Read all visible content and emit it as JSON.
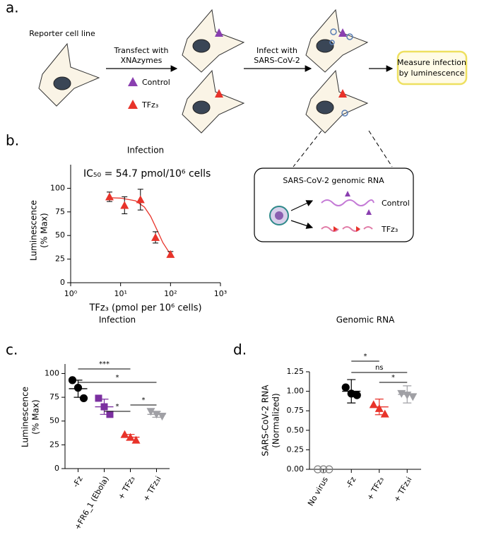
{
  "panel_labels": [
    "a.",
    "b.",
    "c.",
    "d."
  ],
  "diagram": {
    "reporter": "Reporter cell line",
    "transfect": [
      "Transfect with",
      "XNAzymes"
    ],
    "legend_control": "Control",
    "legend_tfz": "TFz₃",
    "infect": [
      "Infect with",
      "SARS-CoV-2"
    ],
    "measure": [
      "Measure infection",
      "by luminescence"
    ],
    "rna_box": {
      "title": "SARS-CoV-2 genomic RNA",
      "control": "Control",
      "tfz": "TFz₃"
    }
  },
  "chart_data": [
    {
      "type": "scatter",
      "title": "Infection",
      "annotation": "IC₅₀ = 54.7 pmol/10⁶ cells",
      "x_label": "TFz₃ (pmol per 10⁶ cells)",
      "y_label": [
        "Luminescence",
        "(% Max)"
      ],
      "xscale": "log",
      "xlim": [
        1,
        1000
      ],
      "xticks": [
        {
          "value": 1,
          "label": "10⁰"
        },
        {
          "value": 10,
          "label": "10¹"
        },
        {
          "value": 100,
          "label": "10²"
        },
        {
          "value": 1000,
          "label": "10³"
        }
      ],
      "ylim": [
        0,
        125
      ],
      "yticks": [
        0,
        25,
        50,
        75,
        100
      ],
      "series": [
        {
          "color": "#e8332a",
          "x": [
            6,
            12,
            25,
            50,
            100
          ],
          "values": [
            91,
            82,
            88,
            48,
            30
          ],
          "errors": [
            5,
            9,
            11,
            6,
            3
          ]
        }
      ],
      "fit": {
        "color": "#e8332a",
        "x": [
          6,
          10,
          20,
          30,
          40,
          54.7,
          70,
          100
        ],
        "values": [
          90,
          89.6,
          86.7,
          80.1,
          70.3,
          55,
          42.6,
          29.9
        ]
      }
    },
    {
      "type": "strip",
      "title": "Infection",
      "y_label": [
        "Luminescence",
        "(% Max)"
      ],
      "categories": [
        "-Fz",
        "+FR6_1 (Ebola)",
        "+ TFz₃",
        "+ TFz₃i"
      ],
      "ylim": [
        0,
        110
      ],
      "yticks": [
        0,
        25,
        50,
        75,
        100
      ],
      "groups": [
        {
          "color": "#000000",
          "marker": "circle",
          "values": [
            93,
            85,
            74
          ],
          "mean": 84,
          "sd": 9
        },
        {
          "color": "#7b2fa0",
          "marker": "square",
          "values": [
            74,
            65,
            57
          ],
          "mean": 65,
          "sd": 8
        },
        {
          "color": "#e8332a",
          "marker": "triangle",
          "values": [
            36,
            33,
            30
          ],
          "mean": 33,
          "sd": 3
        },
        {
          "color": "#a0a0a5",
          "marker": "triangle-down",
          "values": [
            60,
            57,
            55
          ],
          "mean": 57,
          "sd": 3
        }
      ],
      "annotations": [
        "***",
        "*",
        "*",
        "*"
      ]
    },
    {
      "type": "strip",
      "title": "Genomic RNA",
      "y_label": [
        "SARS-CoV-2 RNA",
        "(Normalized)"
      ],
      "categories": [
        "No virus",
        "-Fz",
        "+ TFz₃",
        "+ TFz₃i"
      ],
      "ylim": [
        0,
        1.25
      ],
      "yticks": [
        {
          "value": 0,
          "label": "0.00"
        },
        {
          "value": 0.25,
          "label": "0.25"
        },
        {
          "value": 0.5,
          "label": "0.50"
        },
        {
          "value": 0.75,
          "label": "0.75"
        },
        {
          "value": 1,
          "label": "1.00"
        },
        {
          "value": 1.25,
          "label": "1.25"
        }
      ],
      "groups": [
        {
          "color": "#808080",
          "marker": "circle-open",
          "values": [
            0,
            0,
            0
          ]
        },
        {
          "color": "#000000",
          "marker": "circle",
          "values": [
            1.05,
            0.97,
            0.95
          ],
          "mean": 1.0,
          "sd": 0.15
        },
        {
          "color": "#e8332a",
          "marker": "triangle",
          "values": [
            0.83,
            0.78,
            0.71
          ],
          "mean": 0.8,
          "sd": 0.1
        },
        {
          "color": "#a0a0a5",
          "marker": "triangle-down",
          "values": [
            0.97,
            0.95,
            0.93
          ],
          "mean": 0.96,
          "sd": 0.11
        }
      ],
      "annotations": [
        "*",
        "ns",
        "*"
      ]
    }
  ]
}
